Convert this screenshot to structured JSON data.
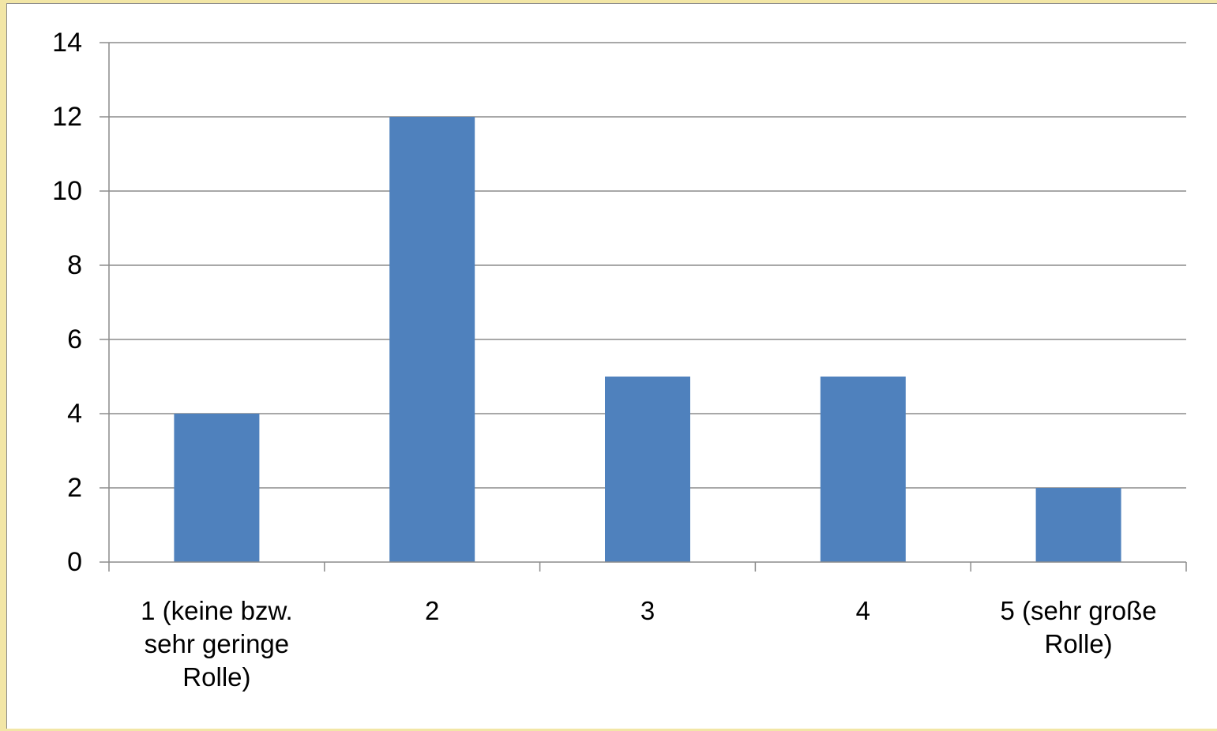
{
  "chart_data": {
    "type": "bar",
    "categories": [
      [
        "1 (keine bzw.",
        "sehr geringe",
        "Rolle)"
      ],
      [
        "2"
      ],
      [
        "3"
      ],
      [
        "4"
      ],
      [
        "5 (sehr große",
        "Rolle)"
      ]
    ],
    "values": [
      4,
      12,
      5,
      5,
      2
    ],
    "yticks": [
      "0",
      "2",
      "4",
      "6",
      "8",
      "10",
      "12",
      "14"
    ],
    "ylim": [
      0,
      14
    ],
    "grid": true,
    "legend": "none",
    "colors": {
      "bar": "#4f81bd",
      "grid": "#8c8c8c",
      "axis": "#8c8c8c",
      "frame": "#f2e6a6"
    }
  }
}
